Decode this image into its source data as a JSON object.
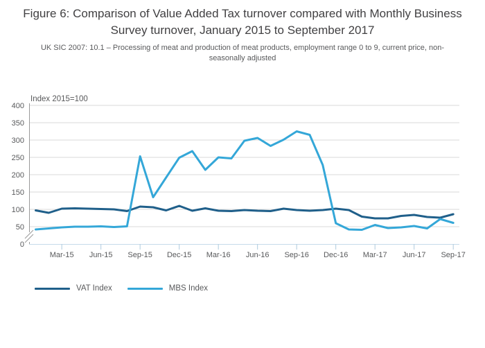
{
  "header": {
    "title": "Figure 6: Comparison of Value Added Tax turnover compared with Monthly Business Survey turnover, January 2015 to September 2017",
    "subtitle": "UK SIC 2007: 10.1 – Processing of meat and production of meat products, employment range 0 to 9, current price, non-seasonally adjusted"
  },
  "colors": {
    "vat": "#1f5f8a",
    "mbs": "#34a7d8",
    "gridline": "#d9d9d9",
    "y_axis": "#999999",
    "x_axis": "#c6daea",
    "tick": "#aecade",
    "label_text": "#58595b"
  },
  "chart_data": {
    "type": "line",
    "axis_title": "Index 2015=100",
    "ylim": [
      0,
      400
    ],
    "y_ticks": [
      0,
      50,
      100,
      150,
      200,
      250,
      300,
      350,
      400
    ],
    "y_axis_break": true,
    "grid": "horizontal",
    "legend_position": "bottom-left",
    "x": [
      "Jan-15",
      "Feb-15",
      "Mar-15",
      "Apr-15",
      "May-15",
      "Jun-15",
      "Jul-15",
      "Aug-15",
      "Sep-15",
      "Oct-15",
      "Nov-15",
      "Dec-15",
      "Jan-16",
      "Feb-16",
      "Mar-16",
      "Apr-16",
      "May-16",
      "Jun-16",
      "Jul-16",
      "Aug-16",
      "Sep-16",
      "Oct-16",
      "Nov-16",
      "Dec-16",
      "Jan-17",
      "Feb-17",
      "Mar-17",
      "Apr-17",
      "May-17",
      "Jun-17",
      "Jul-17",
      "Aug-17",
      "Sep-17"
    ],
    "x_tick_labels": [
      "Mar-15",
      "Jun-15",
      "Sep-15",
      "Dec-15",
      "Mar-16",
      "Jun-16",
      "Sep-16",
      "Dec-16",
      "Mar-17",
      "Jun-17",
      "Sep-17"
    ],
    "series": [
      {
        "name": "VAT Index",
        "color": "#1f5f8a",
        "values": [
          97,
          90,
          102,
          103,
          102,
          101,
          100,
          95,
          108,
          106,
          97,
          110,
          96,
          103,
          96,
          95,
          98,
          96,
          95,
          102,
          98,
          96,
          98,
          102,
          98,
          79,
          74,
          74,
          81,
          84,
          78,
          76,
          86
        ]
      },
      {
        "name": "MBS Index",
        "color": "#34a7d8",
        "values": [
          42,
          45,
          48,
          50,
          50,
          51,
          49,
          51,
          253,
          135,
          192,
          249,
          268,
          214,
          250,
          247,
          298,
          306,
          283,
          301,
          325,
          315,
          228,
          60,
          42,
          41,
          55,
          46,
          48,
          52,
          45,
          72,
          61
        ]
      }
    ]
  },
  "legend": {
    "items": [
      "VAT Index",
      "MBS Index"
    ]
  }
}
